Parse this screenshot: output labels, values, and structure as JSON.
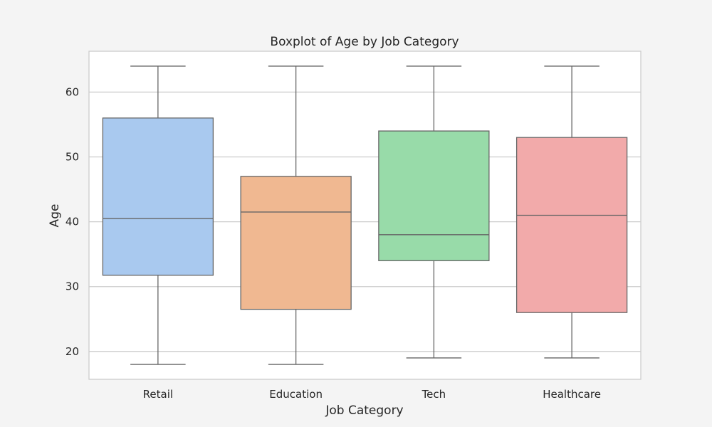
{
  "chart_data": {
    "type": "box",
    "title": "Boxplot of Age by Job Category",
    "xlabel": "Job Category",
    "ylabel": "Age",
    "ylim": [
      15.7,
      66.3
    ],
    "yticks": [
      20,
      30,
      40,
      50,
      60
    ],
    "grid": "horizontal",
    "categories": [
      "Retail",
      "Education",
      "Tech",
      "Healthcare"
    ],
    "series": [
      {
        "category": "Retail",
        "color": "#a9c9ef",
        "whisker_low": 18,
        "q1": 31.75,
        "median": 40.5,
        "q3": 56,
        "whisker_high": 64
      },
      {
        "category": "Education",
        "color": "#f0b891",
        "whisker_low": 18,
        "q1": 26.5,
        "median": 41.5,
        "q3": 47,
        "whisker_high": 64
      },
      {
        "category": "Tech",
        "color": "#98dba9",
        "whisker_low": 19,
        "q1": 34,
        "median": 38,
        "q3": 54,
        "whisker_high": 64
      },
      {
        "category": "Healthcare",
        "color": "#f2aaaa",
        "whisker_low": 19,
        "q1": 26,
        "median": 41,
        "q3": 53,
        "whisker_high": 64
      }
    ]
  }
}
